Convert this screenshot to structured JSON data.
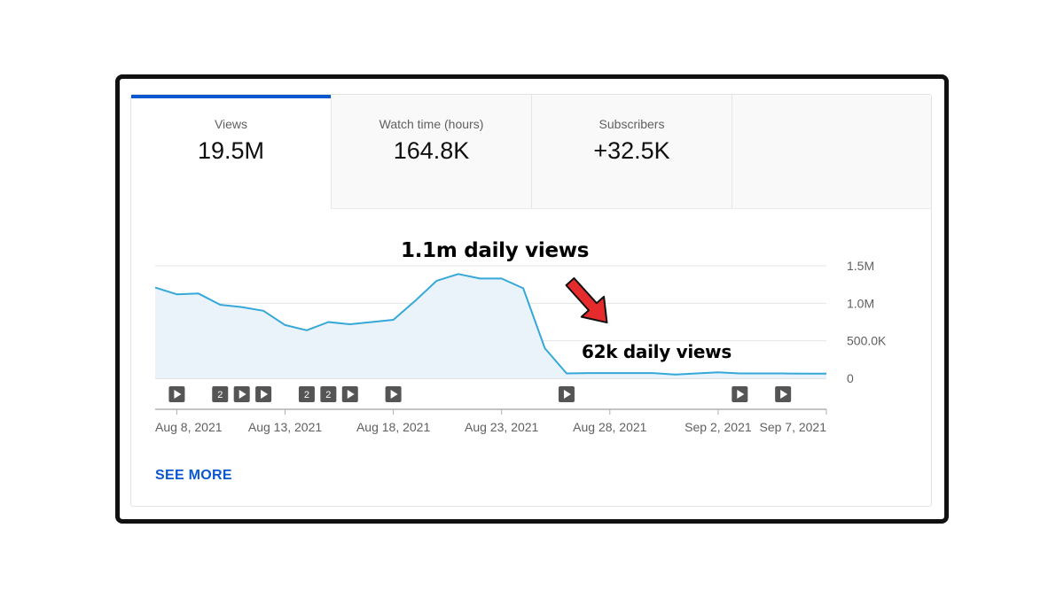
{
  "tabs": [
    {
      "label": "Views",
      "value": "19.5M",
      "active": true
    },
    {
      "label": "Watch time (hours)",
      "value": "164.8K",
      "active": false
    },
    {
      "label": "Subscribers",
      "value": "+32.5K",
      "active": false
    }
  ],
  "see_more": "SEE MORE",
  "annotations": {
    "peak": "1.1m daily views",
    "low": "62k daily views",
    "arrow_color": "#e52b2b"
  },
  "colors": {
    "accent": "#0b57d0",
    "line": "#35a8d8",
    "fill": "#eaf3fa",
    "grid": "#e5e5e5",
    "marker": "#555555"
  },
  "chart_data": {
    "type": "area",
    "x": [
      "Aug 7, 2021",
      "Aug 8, 2021",
      "Aug 9, 2021",
      "Aug 10, 2021",
      "Aug 11, 2021",
      "Aug 12, 2021",
      "Aug 13, 2021",
      "Aug 14, 2021",
      "Aug 15, 2021",
      "Aug 16, 2021",
      "Aug 17, 2021",
      "Aug 18, 2021",
      "Aug 19, 2021",
      "Aug 20, 2021",
      "Aug 21, 2021",
      "Aug 22, 2021",
      "Aug 23, 2021",
      "Aug 24, 2021",
      "Aug 25, 2021",
      "Aug 26, 2021",
      "Aug 27, 2021",
      "Aug 28, 2021",
      "Aug 29, 2021",
      "Aug 30, 2021",
      "Aug 31, 2021",
      "Sep 1, 2021",
      "Sep 2, 2021",
      "Sep 3, 2021",
      "Sep 4, 2021",
      "Sep 5, 2021",
      "Sep 6, 2021",
      "Sep 7, 2021"
    ],
    "series": [
      {
        "values": [
          1210000,
          1120000,
          1130000,
          980000,
          950000,
          900000,
          710000,
          640000,
          750000,
          720000,
          750000,
          780000,
          1030000,
          1300000,
          1390000,
          1330000,
          1330000,
          1200000,
          400000,
          65000,
          70000,
          70000,
          70000,
          70000,
          50000,
          65000,
          80000,
          65000,
          65000,
          65000,
          62000,
          62000
        ]
      }
    ],
    "ylim": [
      0,
      1500000
    ],
    "yticks": [
      0,
      500000,
      1000000,
      1500000
    ],
    "ytick_labels": [
      "0",
      "500.0K",
      "1.0M",
      "1.5M"
    ],
    "xtick_labels": [
      "Aug 8, 2021",
      "Aug 13, 2021",
      "Aug 18, 2021",
      "Aug 23, 2021",
      "Aug 28, 2021",
      "Sep 2, 2021",
      "Sep 7, 2021"
    ],
    "xtick_dates": [
      "Aug 8, 2021",
      "Aug 13, 2021",
      "Aug 18, 2021",
      "Aug 23, 2021",
      "Aug 28, 2021",
      "Sep 2, 2021",
      "Sep 7, 2021"
    ],
    "grid": true,
    "markers": [
      {
        "date": "Aug 8, 2021",
        "type": "video",
        "label": ""
      },
      {
        "date": "Aug 10, 2021",
        "type": "count",
        "label": "2"
      },
      {
        "date": "Aug 11, 2021",
        "type": "video",
        "label": ""
      },
      {
        "date": "Aug 12, 2021",
        "type": "video",
        "label": ""
      },
      {
        "date": "Aug 14, 2021",
        "type": "count",
        "label": "2"
      },
      {
        "date": "Aug 15, 2021",
        "type": "count",
        "label": "2"
      },
      {
        "date": "Aug 16, 2021",
        "type": "video",
        "label": ""
      },
      {
        "date": "Aug 18, 2021",
        "type": "video",
        "label": ""
      },
      {
        "date": "Aug 26, 2021",
        "type": "video",
        "label": ""
      },
      {
        "date": "Sep 3, 2021",
        "type": "video",
        "label": ""
      },
      {
        "date": "Sep 5, 2021",
        "type": "video",
        "label": ""
      }
    ]
  }
}
